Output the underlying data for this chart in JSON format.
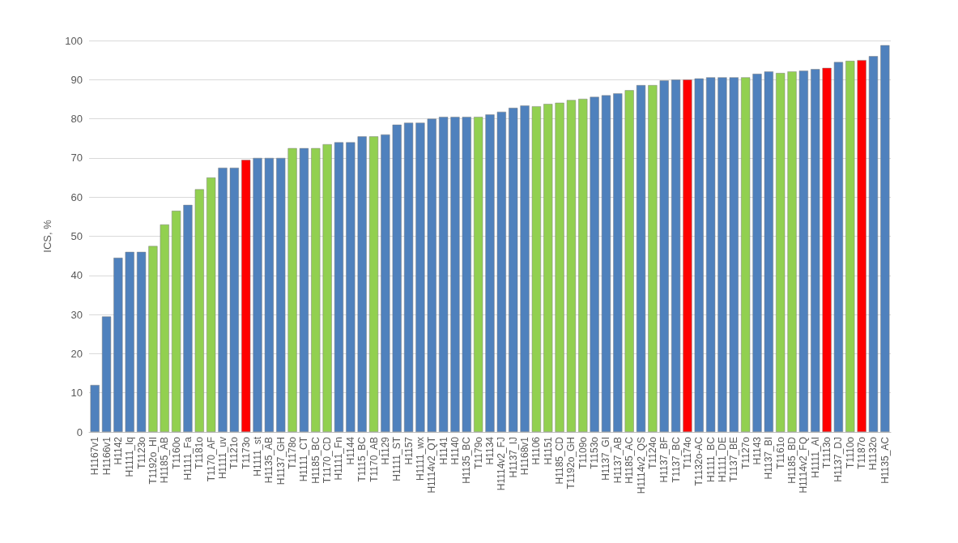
{
  "chart_data": {
    "type": "bar",
    "ylabel": "ICS, %",
    "categories": [
      "H1167v1",
      "H1166v1",
      "H1142",
      "H1111_Iq",
      "T1123o",
      "T1192o_HI",
      "H1185_AB",
      "T1160o",
      "H1111_Fa",
      "T1181o",
      "T1170_AF",
      "H1111_uv",
      "T1121o",
      "T1173o",
      "H1111_st",
      "H1135_AB",
      "H1137_GH",
      "T1178o",
      "H1111_CT",
      "H1185_BC",
      "T1170_CD",
      "H1111_Fn",
      "H1144",
      "T1115_BC",
      "T1170_AB",
      "H1129",
      "H1111_ST",
      "H1157",
      "H1111_wx",
      "H1114v2_QT",
      "H1141",
      "H1140",
      "H1135_BC",
      "T1179o",
      "H1134",
      "H1114v2_FJ",
      "H1137_IJ",
      "H1168v1",
      "H1106",
      "H1151",
      "H1185_CD",
      "T1192o_GH",
      "T1109o",
      "T1153o",
      "H1137_GI",
      "H1137_AB",
      "H1185_AC",
      "H1114v2_QS",
      "T1124o",
      "H1137_BF",
      "T1137_BC",
      "T1174o",
      "T1132o-AC",
      "H1111_BC",
      "H1111_DE",
      "T1137_BE",
      "T1127o",
      "H1143",
      "H1137_BI",
      "T1161o",
      "H1185_BD",
      "H1114v2_FQ",
      "H1111_AI",
      "T1113o",
      "H1137_DJ",
      "T1110o",
      "T1187o",
      "H1132o",
      "H1135_AC"
    ],
    "values": [
      12,
      29.5,
      44.5,
      46,
      46,
      47.5,
      53,
      56.5,
      58,
      62,
      65,
      67.5,
      67.5,
      69.5,
      70,
      70,
      70,
      72.5,
      72.5,
      72.5,
      73.5,
      74,
      74,
      75.5,
      75.5,
      76,
      78.5,
      79,
      79,
      80,
      80.5,
      80.5,
      80.5,
      80.5,
      81.1,
      81.8,
      82.8,
      83.4,
      83.2,
      83.8,
      84.1,
      84.8,
      85.1,
      85.6,
      86,
      86.5,
      87.3,
      88.6,
      88.6,
      89.8,
      90,
      90,
      90.3,
      90.6,
      90.6,
      90.6,
      90.6,
      91.5,
      92.1,
      91.7,
      92.1,
      92.3,
      92.7,
      93,
      94.5,
      94.8,
      95,
      96,
      98.8
    ],
    "colors": [
      "#4f81bd",
      "#4f81bd",
      "#4f81bd",
      "#4f81bd",
      "#4f81bd",
      "#92d050",
      "#92d050",
      "#92d050",
      "#4f81bd",
      "#92d050",
      "#92d050",
      "#4f81bd",
      "#4f81bd",
      "#ff0000",
      "#4f81bd",
      "#4f81bd",
      "#4f81bd",
      "#92d050",
      "#4f81bd",
      "#92d050",
      "#92d050",
      "#4f81bd",
      "#4f81bd",
      "#4f81bd",
      "#92d050",
      "#4f81bd",
      "#4f81bd",
      "#4f81bd",
      "#4f81bd",
      "#4f81bd",
      "#4f81bd",
      "#4f81bd",
      "#4f81bd",
      "#92d050",
      "#4f81bd",
      "#4f81bd",
      "#4f81bd",
      "#4f81bd",
      "#92d050",
      "#92d050",
      "#92d050",
      "#92d050",
      "#92d050",
      "#4f81bd",
      "#4f81bd",
      "#4f81bd",
      "#92d050",
      "#4f81bd",
      "#92d050",
      "#4f81bd",
      "#4f81bd",
      "#ff0000",
      "#4f81bd",
      "#4f81bd",
      "#4f81bd",
      "#4f81bd",
      "#92d050",
      "#4f81bd",
      "#4f81bd",
      "#92d050",
      "#92d050",
      "#4f81bd",
      "#4f81bd",
      "#ff0000",
      "#4f81bd",
      "#92d050",
      "#ff0000",
      "#4f81bd",
      "#4f81bd"
    ],
    "ylim": [
      0,
      100
    ],
    "yticks": [
      0,
      10,
      20,
      30,
      40,
      50,
      60,
      70,
      80,
      90,
      100
    ],
    "grid": "y"
  }
}
